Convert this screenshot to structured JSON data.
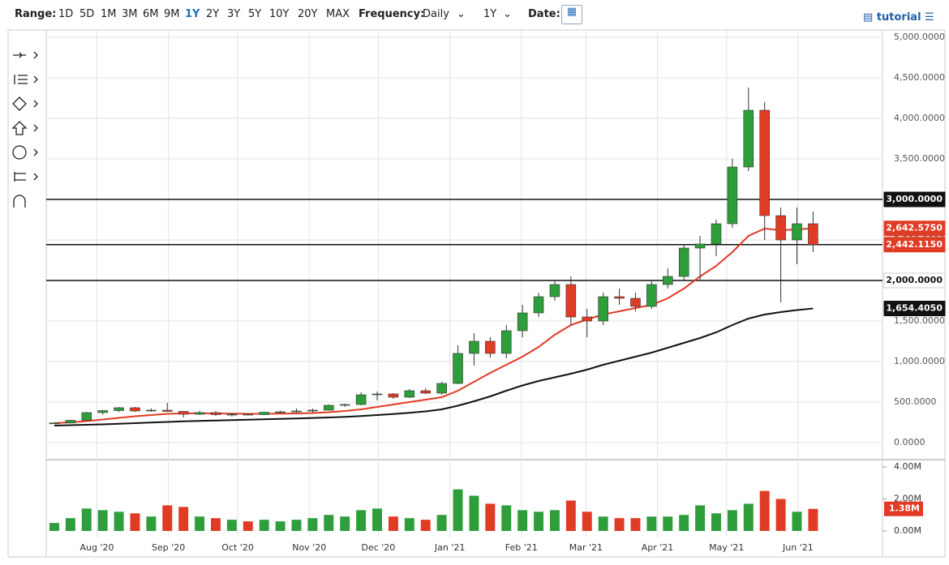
{
  "toolbar": {
    "range_label": "Range:",
    "ranges": [
      "1D",
      "5D",
      "1M",
      "3M",
      "6M",
      "9M",
      "1Y",
      "2Y",
      "3Y",
      "5Y",
      "10Y",
      "20Y",
      "MAX"
    ],
    "active_range": 6,
    "frequency_label": "Frequency:",
    "frequency": "Daily",
    "period": "1Y",
    "date_label": "Date:",
    "tutorial": "tutorial"
  },
  "chart_data": {
    "type": "candlestick",
    "up_color": "#2e9e3a",
    "down_color": "#e03b24",
    "xlim": [
      -0.5,
      51.3
    ],
    "xticks": [
      {
        "value": 2.64,
        "label": "Aug '20"
      },
      {
        "value": 7.07,
        "label": "Sep '20"
      },
      {
        "value": 11.36,
        "label": "Oct '20"
      },
      {
        "value": 15.79,
        "label": "Nov '20"
      },
      {
        "value": 20.07,
        "label": "Dec '20"
      },
      {
        "value": 24.5,
        "label": "Jan '21"
      },
      {
        "value": 28.93,
        "label": "Feb '21"
      },
      {
        "value": 32.93,
        "label": "Mar '21"
      },
      {
        "value": 37.36,
        "label": "Apr '21"
      },
      {
        "value": 41.64,
        "label": "May '21"
      },
      {
        "value": 46.07,
        "label": "Jun '21"
      }
    ],
    "ylim": [
      -200,
      5000
    ],
    "yticks": [
      {
        "value": 0,
        "label": "0.0000"
      },
      {
        "value": 500,
        "label": "500.0000"
      },
      {
        "value": 1000,
        "label": "1,000.0000"
      },
      {
        "value": 1500,
        "label": "1,500.0000"
      },
      {
        "value": 2000,
        "label": "2,000.0000"
      },
      {
        "value": 2500,
        "label": "2,500.0000"
      },
      {
        "value": 3000,
        "label": "3,000.0000"
      },
      {
        "value": 3500,
        "label": "3,500.0000"
      },
      {
        "value": 4000,
        "label": "4,000.0000"
      },
      {
        "value": 4500,
        "label": "4,500.0000"
      },
      {
        "value": 5000,
        "label": "5,000.0000"
      }
    ],
    "grid": true,
    "open": [
      240,
      242,
      275,
      370,
      395,
      430,
      390,
      400,
      385,
      350,
      370,
      345,
      350,
      345,
      375,
      380,
      390,
      400,
      460,
      470,
      590,
      600,
      560,
      640,
      610,
      730,
      1100,
      1250,
      1100,
      1380,
      1600,
      1800,
      1950,
      1550,
      1500,
      1800,
      1780,
      1680,
      1950,
      2050,
      2400,
      2450,
      2700,
      3400,
      4100,
      2800,
      2500,
      2700
    ],
    "high": [
      245,
      280,
      380,
      400,
      440,
      440,
      420,
      490,
      390,
      390,
      390,
      360,
      360,
      380,
      395,
      420,
      420,
      470,
      480,
      620,
      630,
      610,
      660,
      670,
      750,
      1200,
      1350,
      1300,
      1450,
      1700,
      1850,
      2000,
      2050,
      1650,
      1850,
      1900,
      1850,
      2000,
      2150,
      2450,
      2550,
      2750,
      3500,
      4380,
      4200,
      2900,
      2900,
      2850
    ],
    "low": [
      230,
      238,
      270,
      345,
      375,
      380,
      380,
      380,
      310,
      340,
      330,
      320,
      335,
      340,
      365,
      370,
      370,
      395,
      440,
      460,
      520,
      540,
      550,
      600,
      590,
      720,
      950,
      1050,
      1040,
      1300,
      1550,
      1750,
      1450,
      1300,
      1450,
      1700,
      1620,
      1650,
      1900,
      2000,
      2000,
      2300,
      2650,
      3350,
      2500,
      1730,
      2200,
      2350
    ],
    "close": [
      242,
      275,
      370,
      395,
      430,
      390,
      400,
      385,
      350,
      370,
      345,
      350,
      345,
      375,
      380,
      390,
      400,
      460,
      470,
      590,
      600,
      560,
      640,
      610,
      730,
      1100,
      1250,
      1100,
      1380,
      1600,
      1800,
      1950,
      1550,
      1500,
      1800,
      1780,
      1680,
      1950,
      2050,
      2400,
      2450,
      2700,
      3400,
      4100,
      2800,
      2500,
      2700,
      2442.115
    ],
    "ma": [
      {
        "color": "#e03b24",
        "values": [
          240,
          250,
          265,
          285,
          305,
          325,
          340,
          355,
          360,
          362,
          360,
          358,
          355,
          355,
          357,
          360,
          365,
          375,
          390,
          410,
          440,
          470,
          500,
          530,
          560,
          640,
          750,
          860,
          960,
          1060,
          1180,
          1330,
          1450,
          1520,
          1580,
          1620,
          1660,
          1700,
          1780,
          1900,
          2050,
          2180,
          2350,
          2550,
          2640,
          2620,
          2630,
          2642.575
        ]
      },
      {
        "color": "#111111",
        "values": [
          210,
          215,
          220,
          225,
          232,
          240,
          248,
          255,
          262,
          268,
          272,
          277,
          282,
          287,
          292,
          298,
          304,
          310,
          318,
          328,
          340,
          352,
          368,
          385,
          410,
          455,
          510,
          570,
          640,
          705,
          760,
          805,
          850,
          900,
          960,
          1010,
          1060,
          1110,
          1170,
          1230,
          1290,
          1360,
          1450,
          1530,
          1580,
          1610,
          1635,
          1654.405
        ]
      }
    ],
    "hlines": [
      2000,
      3000,
      2442.115
    ],
    "price_labels": [
      {
        "value": 3000,
        "label": "3,000.0000",
        "color": "#111111"
      },
      {
        "value": 2642.575,
        "label": "2,642.5750",
        "color": "#e03b24"
      },
      {
        "value": 2442.115,
        "label": "2,442.1150",
        "color": "#e03b24"
      },
      {
        "value": 2000,
        "label": "2,000.0000",
        "color": "#ffffff"
      },
      {
        "value": 1654.405,
        "label": "1,654.4050",
        "color": "#111111"
      }
    ],
    "volume": {
      "ylim": [
        0,
        4000000
      ],
      "yticks": [
        {
          "value": 0,
          "label": "0.00M"
        },
        {
          "value": 2000000,
          "label": "2.00M"
        },
        {
          "value": 4000000,
          "label": "4.00M"
        }
      ],
      "values": [
        500000,
        800000,
        1400000,
        1300000,
        1200000,
        1100000,
        900000,
        1600000,
        1500000,
        900000,
        800000,
        700000,
        600000,
        700000,
        600000,
        700000,
        800000,
        1000000,
        900000,
        1300000,
        1400000,
        900000,
        800000,
        700000,
        1000000,
        2600000,
        2200000,
        1700000,
        1600000,
        1300000,
        1200000,
        1300000,
        1900000,
        1200000,
        900000,
        800000,
        800000,
        900000,
        900000,
        1000000,
        1600000,
        1100000,
        1300000,
        1700000,
        2500000,
        2000000,
        1200000,
        1380000
      ],
      "last_label": {
        "value": 1380000,
        "label": "1.38M"
      }
    }
  }
}
